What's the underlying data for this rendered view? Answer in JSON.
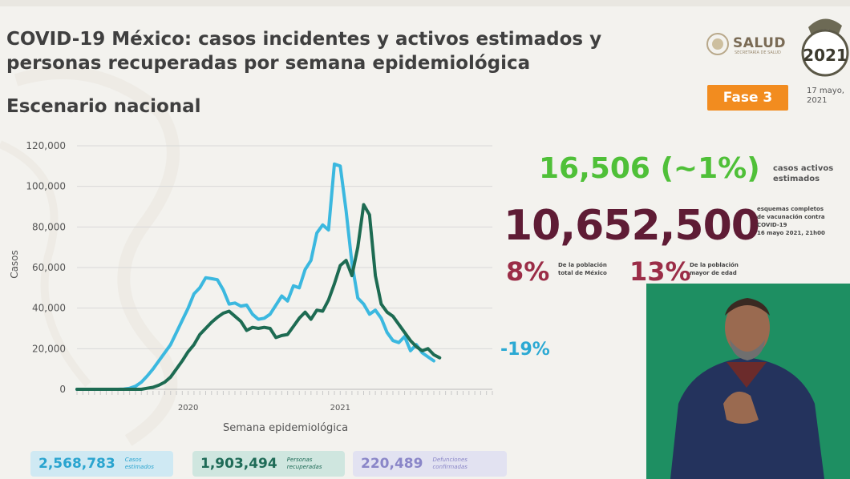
{
  "header": {
    "title_line1": "COVID-19 México: casos incidentes y activos estimados y",
    "title_line2": "personas recuperadas por semana epidemiológica",
    "subtitle": "Escenario nacional",
    "salud_logo_text": "SALUD",
    "salud_logo_small": "SECRETARÍA DE SALUD",
    "logo_2021_text": "2021",
    "phase_badge": "Fase 3",
    "date_line1": "17 mayo,",
    "date_line2": "2021"
  },
  "stats": {
    "active_cases": "16,506 (~1%)",
    "active_cases_label_1": "casos activos",
    "active_cases_label_2": "estimados",
    "vaccination_total": "10,652,500",
    "vaccination_label_1": "esquemas completos",
    "vaccination_label_2": "de vacunación contra",
    "vaccination_label_3": "COVID-19",
    "vaccination_label_4": "16 mayo 2021, 21h00",
    "pct_total": "8%",
    "pct_total_label_1": "De la población",
    "pct_total_label_2": "total de México",
    "pct_adult": "13%",
    "pct_adult_label_1": "De la población",
    "pct_adult_label_2": "mayor de edad",
    "weekly_change": "-19%"
  },
  "summary": {
    "estimated_cases": "2,568,783",
    "estimated_cases_label_1": "Casos",
    "estimated_cases_label_2": "estimados",
    "recovered": "1,903,494",
    "recovered_label_1": "Personas",
    "recovered_label_2": "recuperadas",
    "deaths": "220,489",
    "deaths_label_1": "Defunciones",
    "deaths_label_2": "confirmadas"
  },
  "colors": {
    "estimated_cases": "#3bb8df",
    "active": "#1d6b52",
    "green_stat": "#4fc038",
    "maroon_stat": "#5f1c35",
    "phase": "#f28c1f"
  },
  "chart_data": {
    "type": "line",
    "xlabel": "Semana epidemiológica",
    "ylabel": "Casos",
    "ylim": [
      0,
      120000
    ],
    "yticks": [
      0,
      20000,
      40000,
      60000,
      80000,
      100000,
      120000
    ],
    "ytick_labels": [
      "0",
      "20,000",
      "40,000",
      "60,000",
      "80,000",
      "100,000",
      "120,000"
    ],
    "x_year_labels": [
      {
        "text": "2020",
        "week": 19
      },
      {
        "text": "2021",
        "week": 45
      }
    ],
    "weeks_total": 72,
    "grid": true,
    "legend": "none",
    "series": [
      {
        "values": [
          0,
          0,
          0,
          0,
          0,
          0,
          0,
          0,
          100,
          500,
          1500,
          3500,
          6500,
          10000,
          14000,
          18000,
          22000,
          28000,
          34000,
          40000,
          47000,
          50000,
          55000,
          54500,
          54000,
          49000,
          42000,
          42500,
          41000,
          41500,
          37000,
          34500,
          35000,
          37000,
          41500,
          46000,
          43500,
          51000,
          50000,
          59000,
          63500,
          77000,
          81000,
          78500,
          111000,
          110000,
          88000,
          62000,
          45000,
          42000,
          37000,
          39000,
          35000,
          28000,
          24000,
          23000,
          26000,
          19000,
          22000,
          18000,
          16000,
          14000
        ],
        "color": "#3bb8df"
      },
      {
        "values": [
          0,
          0,
          0,
          0,
          0,
          0,
          0,
          0,
          0,
          0,
          0,
          0,
          500,
          1000,
          2000,
          3500,
          6000,
          10000,
          14000,
          18500,
          22000,
          27000,
          30000,
          33000,
          35500,
          37500,
          38500,
          36000,
          33500,
          29000,
          30500,
          30000,
          30500,
          30000,
          25500,
          26500,
          27000,
          31000,
          35000,
          38000,
          34500,
          39000,
          38500,
          44000,
          52000,
          61000,
          63500,
          56000,
          70000,
          91000,
          86000,
          56000,
          42000,
          38000,
          36000,
          32000,
          28000,
          24000,
          21000,
          19000,
          20000,
          17000,
          15500
        ],
        "color": "#1d6b52"
      }
    ]
  }
}
